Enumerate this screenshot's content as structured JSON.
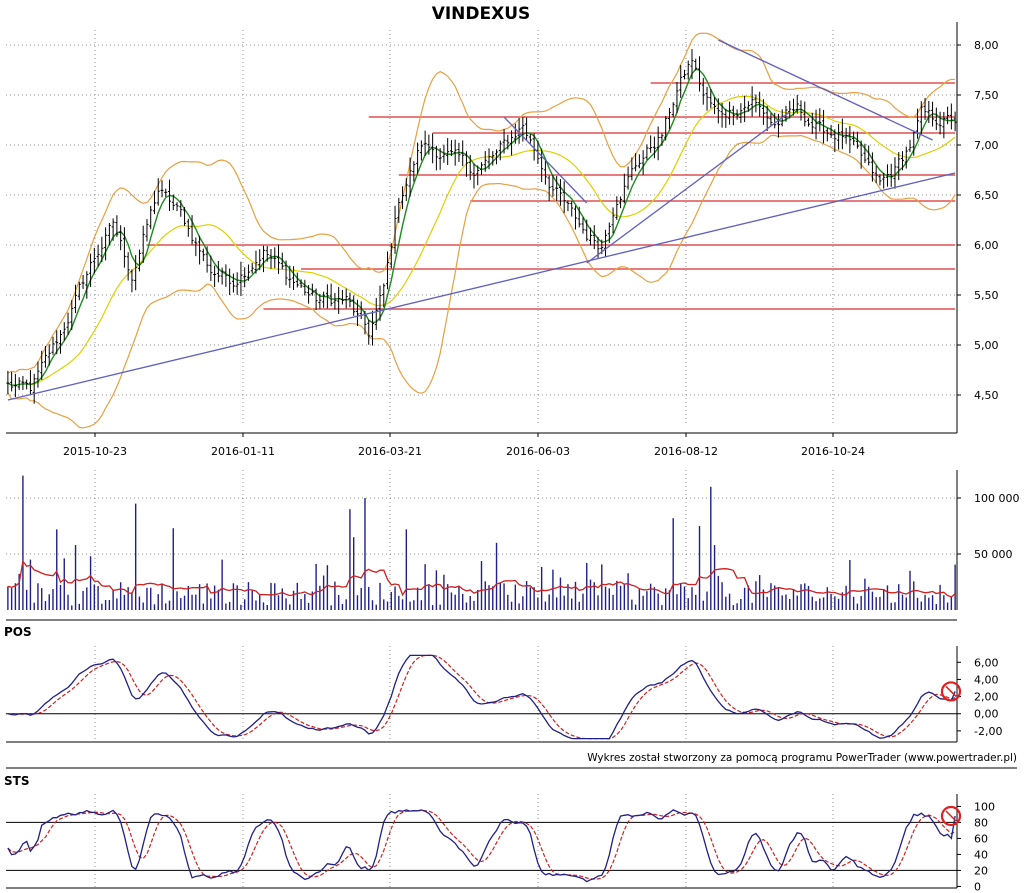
{
  "title": "VINDEXUS",
  "credit": "Wykres został stworzony za pomocą programu PowerTrader (www.powertrader.pl)",
  "colors": {
    "candle": "#000000",
    "green_ma": "#1e8c1e",
    "yellow_ma": "#e0d000",
    "bands": "#e8a040",
    "resistance": "#e05050",
    "trendline": "#6060c0",
    "volume_bar": "#20208a",
    "volume_ma": "#d02020",
    "osc_main": "#20208a",
    "osc_signal": "#d02020",
    "marker": "#e02020",
    "grid": "#909090"
  },
  "chart_data": [
    {
      "type": "candlestick",
      "title": "VINDEXUS",
      "x_labels": [
        "2015-10-23",
        "2016-01-11",
        "2016-03-21",
        "2016-06-03",
        "2016-08-12",
        "2016-10-24"
      ],
      "y_ticks": [
        "4,50",
        "5,00",
        "5,50",
        "6,00",
        "6,50",
        "7,00",
        "7,50",
        "8,00"
      ],
      "ylim": [
        4.2,
        8.15
      ],
      "price_path": [
        [
          0,
          4.6
        ],
        [
          6,
          4.55
        ],
        [
          14,
          5.1
        ],
        [
          22,
          5.8
        ],
        [
          28,
          6.2
        ],
        [
          33,
          5.7
        ],
        [
          40,
          6.55
        ],
        [
          46,
          6.3
        ],
        [
          54,
          5.75
        ],
        [
          60,
          5.65
        ],
        [
          68,
          5.95
        ],
        [
          74,
          5.7
        ],
        [
          82,
          5.45
        ],
        [
          90,
          5.45
        ],
        [
          96,
          5.1
        ],
        [
          100,
          5.55
        ],
        [
          104,
          6.45
        ],
        [
          110,
          7.0
        ],
        [
          117,
          6.9
        ],
        [
          124,
          6.75
        ],
        [
          130,
          6.9
        ],
        [
          137,
          7.2
        ],
        [
          144,
          6.65
        ],
        [
          150,
          6.3
        ],
        [
          154,
          6.1
        ],
        [
          158,
          6.0
        ],
        [
          162,
          6.5
        ],
        [
          168,
          6.85
        ],
        [
          174,
          7.1
        ],
        [
          178,
          7.55
        ],
        [
          182,
          7.85
        ],
        [
          185,
          7.5
        ],
        [
          189,
          7.3
        ],
        [
          193,
          7.35
        ],
        [
          198,
          7.45
        ],
        [
          204,
          7.2
        ],
        [
          210,
          7.35
        ],
        [
          216,
          7.15
        ],
        [
          222,
          7.1
        ],
        [
          228,
          6.8
        ],
        [
          232,
          6.6
        ],
        [
          236,
          6.75
        ],
        [
          240,
          7.0
        ],
        [
          243,
          7.3
        ],
        [
          246,
          7.25
        ],
        [
          250,
          7.25
        ]
      ],
      "horizontal_levels": [
        {
          "value": 7.28,
          "x0": 96,
          "x1": 252
        },
        {
          "value": 7.62,
          "x0": 171,
          "x1": 252
        },
        {
          "value": 7.12,
          "x0": 113,
          "x1": 252
        },
        {
          "value": 6.7,
          "x0": 104,
          "x1": 252
        },
        {
          "value": 6.44,
          "x0": 123,
          "x1": 252
        },
        {
          "value": 6.0,
          "x0": 37,
          "x1": 252
        },
        {
          "value": 5.76,
          "x0": 78,
          "x1": 252
        },
        {
          "value": 5.36,
          "x0": 68,
          "x1": 252
        }
      ],
      "trendlines": [
        {
          "x0": 0,
          "y0": 4.45,
          "x1": 252,
          "y1": 6.72
        },
        {
          "x0": 154,
          "y0": 5.82,
          "x1": 208,
          "y1": 7.33
        },
        {
          "x0": 132,
          "y0": 7.28,
          "x1": 154,
          "y1": 6.42
        },
        {
          "x0": 189,
          "y0": 8.05,
          "x1": 246,
          "y1": 7.05
        }
      ]
    },
    {
      "type": "bar",
      "name": "volume",
      "y_ticks": [
        "50 000",
        "100 000"
      ],
      "ylim": [
        0,
        125000
      ],
      "spikes": [
        [
          4,
          120000
        ],
        [
          6,
          45000
        ],
        [
          13,
          72000
        ],
        [
          18,
          58000
        ],
        [
          22,
          48000
        ],
        [
          34,
          95000
        ],
        [
          44,
          73000
        ],
        [
          57,
          45000
        ],
        [
          85,
          40000
        ],
        [
          91,
          90000
        ],
        [
          92,
          65000
        ],
        [
          95,
          100000
        ],
        [
          106,
          72000
        ],
        [
          130,
          60000
        ],
        [
          154,
          42000
        ],
        [
          177,
          82000
        ],
        [
          184,
          75000
        ],
        [
          187,
          110000
        ],
        [
          188,
          58000
        ],
        [
          228,
          28000
        ],
        [
          240,
          35000
        ]
      ]
    },
    {
      "type": "line",
      "name": "POS",
      "y_ticks": [
        "6,00",
        "4,00",
        "2,00",
        "0,00",
        "-2,00"
      ],
      "ylim": [
        -3.3,
        7.2
      ]
    },
    {
      "type": "line",
      "name": "STS",
      "y_ticks": [
        "100",
        "80",
        "60",
        "40",
        "20",
        "0"
      ],
      "ylim": [
        -2,
        108
      ]
    }
  ]
}
